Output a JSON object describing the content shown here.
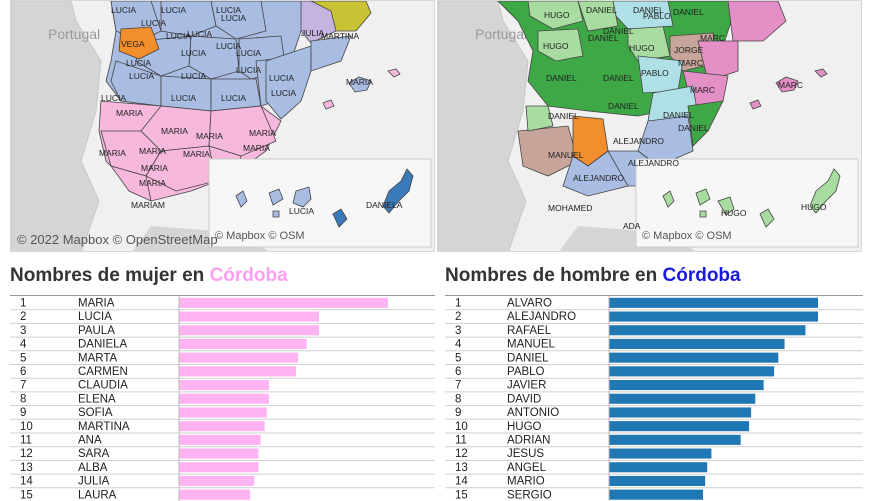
{
  "maps": {
    "left": {
      "country_label": "Portugal",
      "attribution": "© 2022 Mapbox  © OpenStreetMap",
      "inset_attribution": "© Mapbox  © OSM",
      "region_labels": [
        "LUCIA",
        "LUCIA",
        "LUCIA",
        "LUCIA",
        "LUCIA",
        "LUCIA",
        "LUCIA",
        "LUCIA",
        "LUCIA",
        "LUCIA",
        "LUCIA",
        "LUCIA",
        "LUCIA",
        "LUCIA",
        "LUCIA",
        "LUCIA",
        "LUCIA",
        "LUCIA",
        "LUCIA",
        "VEGA",
        "MARIA",
        "MARIA",
        "MARIA",
        "MARIA",
        "MARIA",
        "MARIA",
        "MARIA",
        "MARIA",
        "MARIA",
        "MARIA",
        "MARIAM",
        "JULIA",
        "MARTINA",
        "MARIA",
        "LUCIA",
        "DANIELA"
      ],
      "colors": {
        "lucia": "#a9bde3",
        "maria": "#f6b8dd",
        "vega": "#f28e2b",
        "julia": "#c6b4e0",
        "martina": "#c9c235",
        "daniela": "#3a7ab8",
        "land": "#d5d5d5",
        "sea": "#f0f0f0"
      }
    },
    "right": {
      "country_label": "Portugal",
      "inset_attribution": "© Mapbox  © OSM",
      "region_labels": [
        "HUGO",
        "DANIEL",
        "DANIEL",
        "PABLO",
        "DANIEL",
        "DANIEL",
        "HUGO",
        "HUGO",
        "DANIEL",
        "JORGE",
        "MARC",
        "DANIEL",
        "DANIEL",
        "DANIEL",
        "PABLO",
        "MARC",
        "MARC",
        "DANIEL",
        "DANIEL",
        "ALEJANDRO",
        "DANIEL",
        "MANUEL",
        "ALEJANDRO",
        "ALEJANDRO",
        "MOHAMED",
        "MARC",
        "HUGO",
        "HUGO",
        "ADA"
      ],
      "colors": {
        "daniel": "#3ea846",
        "hugo": "#a8dca0",
        "pablo": "#aee0e6",
        "jorge": "#c7a59a",
        "marc": "#e48fc6",
        "manuel": "#c7a59a",
        "alejandro": "#a9bde3",
        "orange": "#f28e2b",
        "land": "#d5d5d5",
        "sea": "#f0f0f0"
      }
    }
  },
  "women_chart": {
    "title_prefix": "Nombres de mujer en ",
    "title_place": "Córdoba",
    "place_color": "#ff9ff0",
    "bar_color": "#ffb3f3"
  },
  "men_chart": {
    "title_prefix": "Nombres de hombre en ",
    "title_place": "Córdoba",
    "place_color": "#1a1adb",
    "bar_color": "#1f77b4"
  },
  "chart_data": [
    {
      "type": "bar",
      "title": "Nombres de mujer en Córdoba",
      "ranks": [
        "1",
        "2",
        "3",
        "4",
        "5",
        "6",
        "7",
        "8",
        "9",
        "10",
        "11",
        "12",
        "13",
        "14",
        "15"
      ],
      "categories": [
        "MARIA",
        "LUCIA",
        "PAULA",
        "DANIELA",
        "MARTA",
        "CARMEN",
        "CLAUDIA",
        "ELENA",
        "SOFIA",
        "MARTINA",
        "ANA",
        "SARA",
        "ALBA",
        "JULIA",
        "LAURA"
      ],
      "values": [
        100,
        67,
        67,
        61,
        57,
        56,
        43,
        43,
        42,
        41,
        39,
        38,
        38,
        36,
        34
      ],
      "orientation": "horizontal"
    },
    {
      "type": "bar",
      "title": "Nombres de hombre en Córdoba",
      "ranks": [
        "1",
        "2",
        "3",
        "4",
        "5",
        "6",
        "7",
        "8",
        "9",
        "10",
        "11",
        "12",
        "13",
        "14",
        "15"
      ],
      "categories": [
        "ALVARO",
        "ALEJANDRO",
        "RAFAEL",
        "MANUEL",
        "DANIEL",
        "PABLO",
        "JAVIER",
        "DAVID",
        "ANTONIO",
        "HUGO",
        "ADRIAN",
        "JESUS",
        "ANGEL",
        "MARIO",
        "SERGIO"
      ],
      "values": [
        100,
        100,
        94,
        84,
        81,
        79,
        74,
        70,
        68,
        67,
        63,
        49,
        47,
        46,
        45
      ],
      "orientation": "horizontal"
    }
  ]
}
